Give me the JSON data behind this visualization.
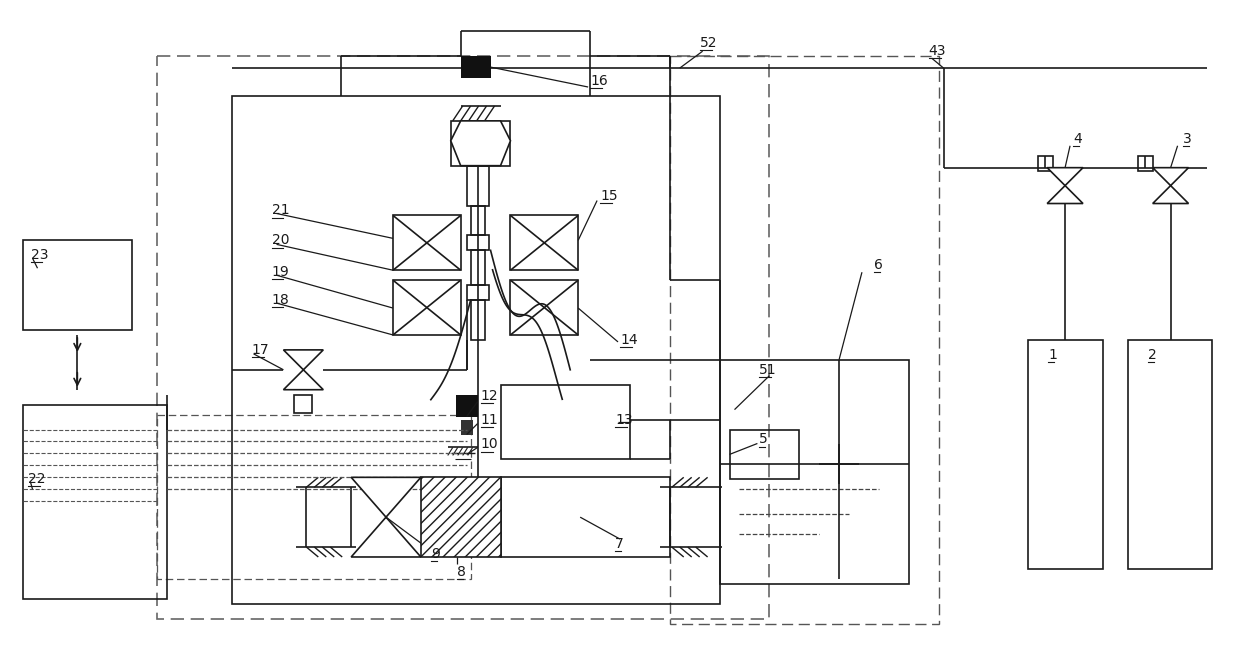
{
  "bg_color": "#ffffff",
  "line_color": "#1a1a1a",
  "fig_width": 12.4,
  "fig_height": 6.45
}
